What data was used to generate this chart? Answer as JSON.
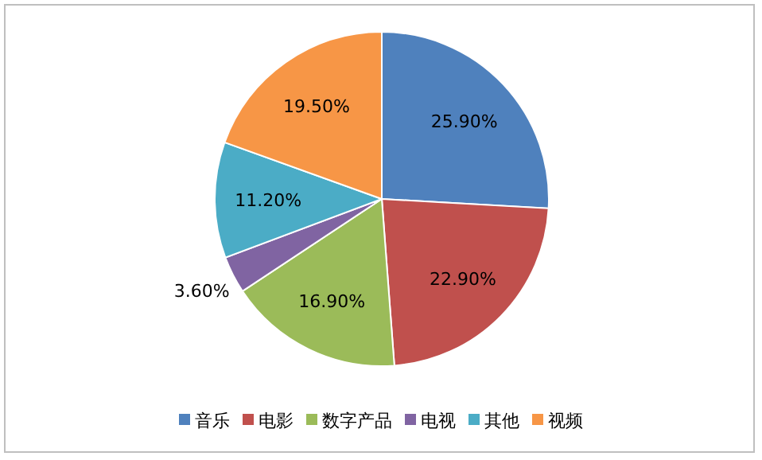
{
  "chart_data": {
    "type": "pie",
    "categories": [
      "音乐",
      "电影",
      "数字产品",
      "电视",
      "其他",
      "视频"
    ],
    "values": [
      25.9,
      22.9,
      16.9,
      3.6,
      11.2,
      19.5
    ],
    "value_labels": [
      "25.90%",
      "22.90%",
      "16.90%",
      "3.60%",
      "11.20%",
      "19.50%"
    ],
    "colors": [
      "#4f81bd",
      "#c0504d",
      "#9bbb59",
      "#8064a2",
      "#4bacc6",
      "#f79646"
    ],
    "legend": "bottom"
  }
}
